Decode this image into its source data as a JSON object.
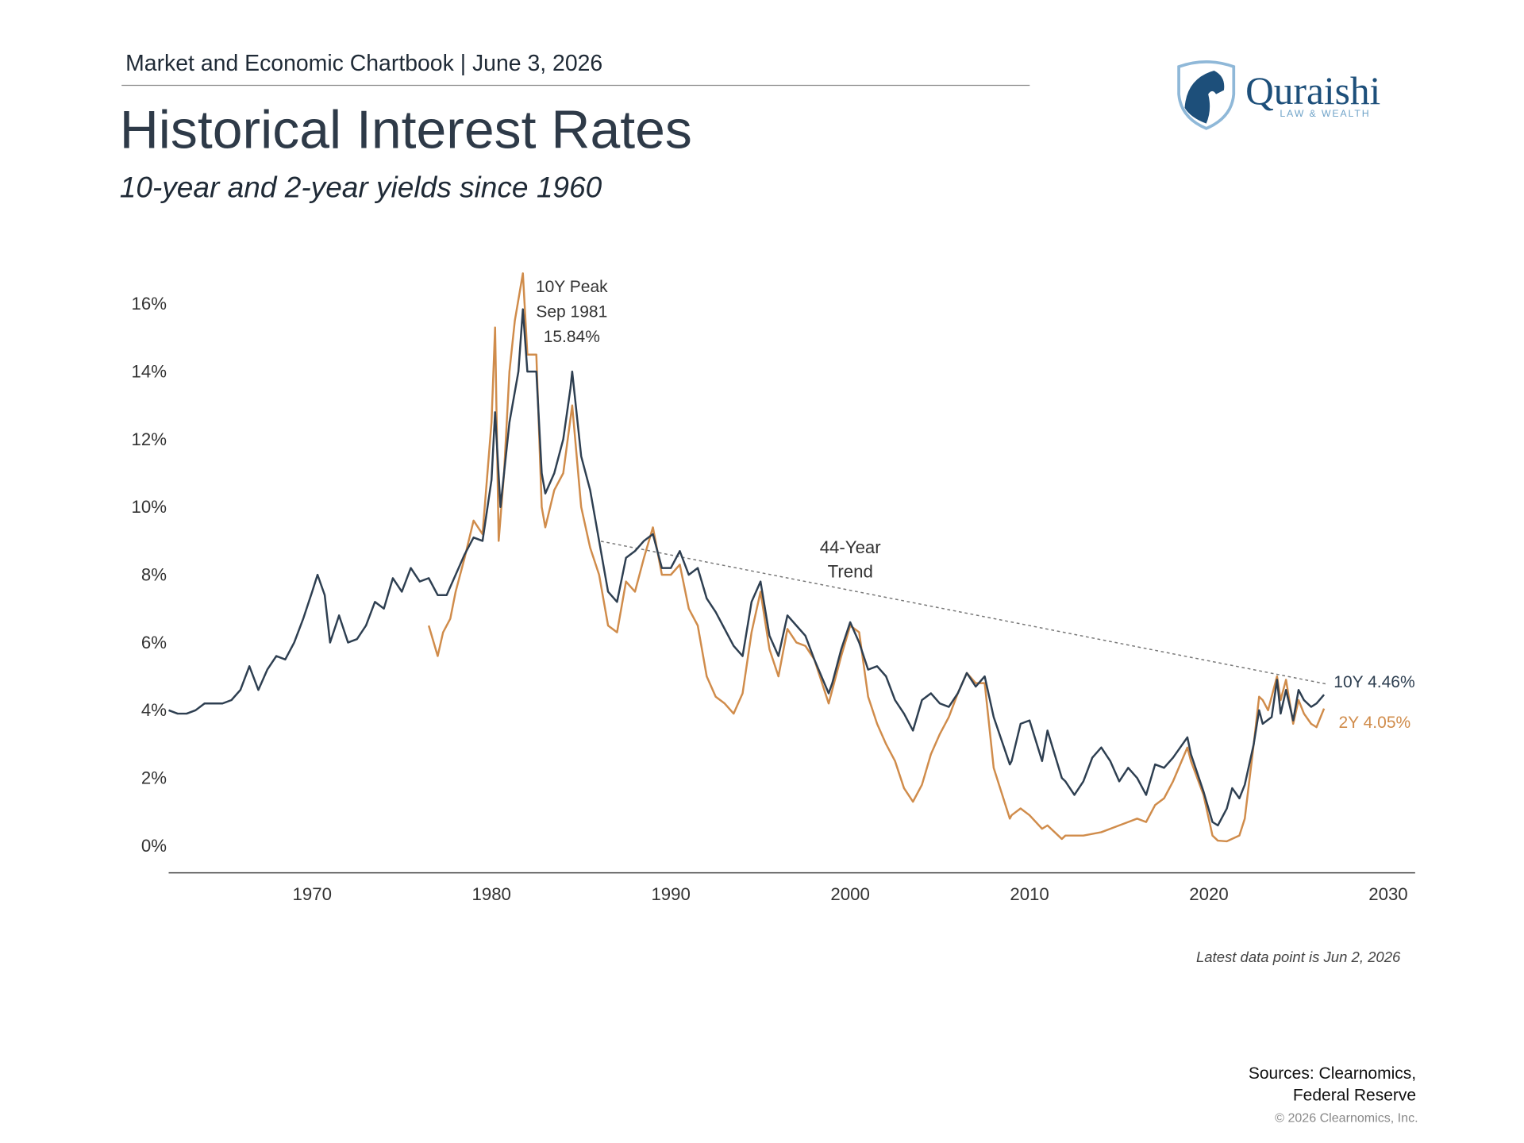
{
  "header": {
    "chartbook": "Market and Economic Chartbook | June 3, 2026",
    "logo_name": "Quraishi",
    "logo_tagline": "LAW & WEALTH"
  },
  "chart_data": {
    "type": "line",
    "title": "Historical Interest Rates",
    "subtitle": "10-year and 2-year yields since 1960",
    "xlim": [
      1962,
      2031.5
    ],
    "xticks": [
      1970,
      1980,
      1990,
      2000,
      2010,
      2020,
      2030
    ],
    "ylim": [
      -0.8,
      17.5
    ],
    "yticks": [
      {
        "value": 0,
        "label": "0%"
      },
      {
        "value": 2,
        "label": "2%"
      },
      {
        "value": 4,
        "label": "4%"
      },
      {
        "value": 6,
        "label": "6%"
      },
      {
        "value": 8,
        "label": "8%"
      },
      {
        "value": 10,
        "label": "10%"
      },
      {
        "value": 12,
        "label": "12%"
      },
      {
        "value": 14,
        "label": "14%"
      },
      {
        "value": 16,
        "label": "16%"
      }
    ],
    "grid": false,
    "series": [
      {
        "color": "#2e3f51",
        "end_label": "10Y 4.46%",
        "x": [
          1962,
          1962.5,
          1963,
          1963.5,
          1964,
          1965,
          1965.5,
          1966,
          1966.5,
          1967,
          1967.5,
          1968,
          1968.5,
          1969,
          1969.5,
          1970,
          1970.3,
          1970.7,
          1971,
          1971.5,
          1972,
          1972.5,
          1973,
          1973.5,
          1974,
          1974.5,
          1975,
          1975.5,
          1976,
          1976.5,
          1977,
          1977.5,
          1978,
          1978.5,
          1979,
          1979.5,
          1980,
          1980.2,
          1980.5,
          1981,
          1981.5,
          1981.75,
          1982,
          1982.5,
          1982.8,
          1983,
          1983.5,
          1984,
          1984.4,
          1984.5,
          1985,
          1985.5,
          1986,
          1986.5,
          1987,
          1987.5,
          1988,
          1988.5,
          1989,
          1989.5,
          1990,
          1990.5,
          1991,
          1991.5,
          1992,
          1992.5,
          1993,
          1993.5,
          1994,
          1994.5,
          1995,
          1995.5,
          1996,
          1996.5,
          1997,
          1997.5,
          1998,
          1998.8,
          1999,
          1999.5,
          2000,
          2000.5,
          2001,
          2001.5,
          2002,
          2002.5,
          2003,
          2003.5,
          2004,
          2004.5,
          2005,
          2005.5,
          2006,
          2006.5,
          2007,
          2007.5,
          2008,
          2008.9,
          2009,
          2009.5,
          2010,
          2010.7,
          2011,
          2011.8,
          2012,
          2012.5,
          2013,
          2013.5,
          2014,
          2014.5,
          2015,
          2015.5,
          2016,
          2016.5,
          2017,
          2017.5,
          2018,
          2018.8,
          2019,
          2019.7,
          2020.2,
          2020.5,
          2021,
          2021.3,
          2021.7,
          2022,
          2022.5,
          2022.8,
          2023,
          2023.5,
          2023.8,
          2024,
          2024.3,
          2024.7,
          2025,
          2025.3,
          2025.7,
          2026,
          2026.42
        ],
        "values": [
          4.0,
          3.9,
          3.9,
          4.0,
          4.2,
          4.2,
          4.3,
          4.6,
          5.3,
          4.6,
          5.2,
          5.6,
          5.5,
          6.0,
          6.7,
          7.5,
          8.0,
          7.4,
          6.0,
          6.8,
          6.0,
          6.1,
          6.5,
          7.2,
          7.0,
          7.9,
          7.5,
          8.2,
          7.8,
          7.9,
          7.4,
          7.4,
          8.0,
          8.6,
          9.1,
          9.0,
          10.8,
          12.8,
          10.0,
          12.5,
          14.0,
          15.84,
          14.0,
          14.0,
          11.0,
          10.4,
          11.0,
          12.0,
          13.5,
          14.0,
          11.5,
          10.5,
          9.0,
          7.5,
          7.2,
          8.5,
          8.7,
          9.0,
          9.2,
          8.2,
          8.2,
          8.7,
          8.0,
          8.2,
          7.3,
          6.9,
          6.4,
          5.9,
          5.6,
          7.2,
          7.8,
          6.2,
          5.6,
          6.8,
          6.5,
          6.2,
          5.5,
          4.5,
          4.8,
          5.8,
          6.6,
          6.0,
          5.2,
          5.3,
          5.0,
          4.3,
          3.9,
          3.4,
          4.3,
          4.5,
          4.2,
          4.1,
          4.5,
          5.1,
          4.7,
          5.0,
          3.8,
          2.4,
          2.5,
          3.6,
          3.7,
          2.5,
          3.4,
          2.0,
          1.9,
          1.5,
          1.9,
          2.6,
          2.9,
          2.5,
          1.9,
          2.3,
          2.0,
          1.5,
          2.4,
          2.3,
          2.6,
          3.2,
          2.7,
          1.6,
          0.7,
          0.6,
          1.1,
          1.7,
          1.4,
          1.8,
          3.0,
          4.0,
          3.6,
          3.8,
          4.9,
          3.9,
          4.6,
          3.7,
          4.6,
          4.3,
          4.1,
          4.2,
          4.46
        ]
      },
      {
        "color": "#d08c4b",
        "end_label": "2Y 4.05%",
        "x": [
          1976.5,
          1977,
          1977.3,
          1977.7,
          1978,
          1978.5,
          1979,
          1979.5,
          1980,
          1980.2,
          1980.4,
          1980.7,
          1981,
          1981.3,
          1981.75,
          1982,
          1982.5,
          1982.8,
          1983,
          1983.5,
          1984,
          1984.5,
          1985,
          1985.5,
          1986,
          1986.5,
          1987,
          1987.5,
          1988,
          1988.5,
          1989,
          1989.5,
          1990,
          1990.5,
          1991,
          1991.5,
          1992,
          1992.5,
          1993,
          1993.5,
          1994,
          1994.5,
          1995,
          1995.5,
          1996,
          1996.5,
          1997,
          1997.5,
          1998,
          1998.8,
          1999,
          1999.5,
          2000,
          2000.5,
          2001,
          2001.5,
          2002,
          2002.5,
          2003,
          2003.5,
          2004,
          2004.5,
          2005,
          2005.5,
          2006,
          2006.5,
          2007,
          2007.5,
          2008,
          2008.9,
          2009,
          2009.5,
          2010,
          2010.7,
          2011,
          2011.8,
          2012,
          2013,
          2014,
          2015,
          2015.5,
          2016,
          2016.5,
          2017,
          2017.5,
          2018,
          2018.8,
          2019,
          2019.7,
          2020.2,
          2020.5,
          2021,
          2021.7,
          2022,
          2022.5,
          2022.8,
          2023,
          2023.3,
          2023.8,
          2024,
          2024.3,
          2024.7,
          2025,
          2025.3,
          2025.7,
          2026,
          2026.42
        ],
        "values": [
          6.5,
          5.6,
          6.3,
          6.7,
          7.5,
          8.5,
          9.6,
          9.2,
          12.5,
          15.3,
          9.0,
          11.0,
          14.0,
          15.5,
          16.9,
          14.5,
          14.5,
          10.0,
          9.4,
          10.5,
          11.0,
          13.0,
          10.0,
          8.8,
          8.0,
          6.5,
          6.3,
          7.8,
          7.5,
          8.5,
          9.4,
          8.0,
          8.0,
          8.3,
          7.0,
          6.5,
          5.0,
          4.4,
          4.2,
          3.9,
          4.5,
          6.3,
          7.5,
          5.8,
          5.0,
          6.4,
          6.0,
          5.9,
          5.5,
          4.2,
          4.6,
          5.6,
          6.5,
          6.3,
          4.4,
          3.6,
          3.0,
          2.5,
          1.7,
          1.3,
          1.8,
          2.7,
          3.3,
          3.8,
          4.5,
          5.1,
          4.8,
          4.8,
          2.3,
          0.8,
          0.9,
          1.1,
          0.9,
          0.5,
          0.6,
          0.2,
          0.3,
          0.3,
          0.4,
          0.6,
          0.7,
          0.8,
          0.7,
          1.2,
          1.4,
          1.9,
          2.9,
          2.5,
          1.5,
          0.3,
          0.15,
          0.13,
          0.3,
          0.8,
          3.0,
          4.4,
          4.3,
          4.0,
          5.0,
          4.3,
          4.9,
          3.6,
          4.3,
          3.9,
          3.6,
          3.5,
          4.05
        ]
      }
    ],
    "peak_annotation": [
      "10Y Peak",
      "Sep 1981",
      "15.84%"
    ],
    "trend": {
      "label": [
        "44-Year",
        "Trend"
      ],
      "x": [
        1986.1,
        2026.5
      ],
      "values": [
        8.99,
        4.78
      ]
    },
    "note": "Latest data point is Jun 2, 2026"
  },
  "footer": {
    "sources": [
      "Sources: Clearnomics,",
      "Federal Reserve"
    ],
    "copyright": "© 2026 Clearnomics, Inc."
  }
}
